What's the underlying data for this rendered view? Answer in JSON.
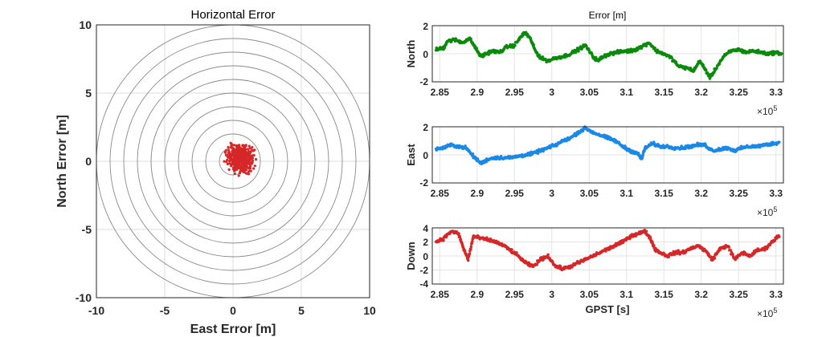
{
  "chart_data": [
    {
      "type": "scatter",
      "title": "Horizontal Error",
      "xlabel": "East Error [m]",
      "ylabel": "North Error [m]",
      "xlim": [
        -10,
        10
      ],
      "ylim": [
        -10,
        10
      ],
      "xticks": [
        "-10",
        "-5",
        "0",
        "5",
        "10"
      ],
      "yticks": [
        "10",
        "5",
        "0",
        "-5",
        "-10"
      ],
      "circle_radii_m": [
        1,
        2,
        3,
        4,
        5,
        6,
        7,
        8,
        9,
        10
      ],
      "marker_color": "#d62728",
      "cluster": {
        "center": [
          0.5,
          0.2
        ],
        "extent": [
          -0.8,
          2.0
        ],
        "n_points": 500
      }
    },
    {
      "type": "scatter",
      "title": "Error [m]",
      "ylabel": "North",
      "xlabel": "",
      "color": "#0a8a0a",
      "xlim": [
        284000,
        331000
      ],
      "ylim": [
        -2,
        2
      ],
      "yticks": [
        "2",
        "0",
        "-2"
      ],
      "xticks": [
        "2.85",
        "2.9",
        "2.95",
        "3",
        "3.05",
        "3.1",
        "3.15",
        "3.2",
        "3.25",
        "3.3"
      ],
      "x_exponent": "×10",
      "x_exponent_power": "5",
      "x": [
        284500,
        285500,
        286000,
        287000,
        288000,
        289000,
        289800,
        290500,
        291200,
        292000,
        293000,
        294000,
        295000,
        296000,
        296500,
        297200,
        297800,
        298500,
        299500,
        300500,
        301500,
        302500,
        303500,
        304500,
        305500,
        306200,
        306800,
        307800,
        308800,
        309800,
        310500,
        311200,
        312000,
        313000,
        314000,
        315000,
        316000,
        317000,
        318000,
        319000,
        319800,
        320500,
        321200,
        322000,
        323000,
        324000,
        325000,
        326000,
        327000,
        328000,
        329000,
        330000,
        330800
      ],
      "y": [
        0.3,
        0.4,
        0.9,
        1.0,
        0.8,
        1.1,
        0.4,
        -0.2,
        0.0,
        0.2,
        0.1,
        0.5,
        0.6,
        1.3,
        1.5,
        1.0,
        0.2,
        -0.3,
        -0.5,
        -0.3,
        -0.2,
        0.0,
        0.3,
        0.6,
        -0.2,
        -0.5,
        -0.2,
        0.0,
        0.1,
        0.2,
        0.2,
        0.3,
        0.5,
        0.8,
        0.2,
        0.0,
        -0.3,
        -0.9,
        -1.0,
        -1.2,
        -0.5,
        -1.1,
        -1.7,
        -1.0,
        -0.2,
        0.2,
        0.3,
        0.1,
        0.2,
        0.1,
        0.0,
        0.1,
        0.0
      ]
    },
    {
      "type": "scatter",
      "ylabel": "East",
      "xlabel": "",
      "color": "#1a88e6",
      "xlim": [
        284000,
        331000
      ],
      "ylim": [
        -2,
        2
      ],
      "yticks": [
        "2",
        "0",
        "-2"
      ],
      "xticks": [
        "2.85",
        "2.9",
        "2.95",
        "3",
        "3.05",
        "3.1",
        "3.15",
        "3.2",
        "3.25",
        "3.3"
      ],
      "x_exponent": "×10",
      "x_exponent_power": "5",
      "x": [
        284500,
        285500,
        286500,
        287500,
        288500,
        289500,
        290500,
        291500,
        292500,
        293500,
        294500,
        295500,
        296500,
        297500,
        298500,
        299500,
        300500,
        301500,
        302500,
        303500,
        304500,
        305500,
        306500,
        307500,
        308500,
        309500,
        310500,
        311500,
        312000,
        312500,
        313500,
        314500,
        315500,
        316500,
        317500,
        318500,
        319500,
        320500,
        321500,
        322500,
        323500,
        324500,
        325500,
        326500,
        327500,
        328500,
        329500,
        330500
      ],
      "y": [
        0.4,
        0.5,
        0.7,
        0.6,
        0.5,
        -0.1,
        -0.6,
        -0.3,
        -0.2,
        -0.2,
        -0.2,
        -0.1,
        0.0,
        0.1,
        0.3,
        0.5,
        0.7,
        1.0,
        1.2,
        1.6,
        1.9,
        1.6,
        1.4,
        1.2,
        1.0,
        0.6,
        0.3,
        0.1,
        -0.3,
        0.5,
        0.8,
        0.6,
        0.6,
        0.5,
        0.5,
        0.6,
        0.7,
        0.7,
        0.3,
        0.4,
        0.5,
        0.3,
        0.5,
        0.6,
        0.6,
        0.7,
        0.8,
        0.9
      ]
    },
    {
      "type": "scatter",
      "ylabel": "Down",
      "xlabel": "GPST [s]",
      "color": "#d62728",
      "xlim": [
        284000,
        331000
      ],
      "ylim": [
        -4,
        4
      ],
      "yticks": [
        "4",
        "2",
        "0",
        "-2",
        "-4"
      ],
      "xticks": [
        "2.85",
        "2.9",
        "2.95",
        "3",
        "3.05",
        "3.1",
        "3.15",
        "3.2",
        "3.25",
        "3.3"
      ],
      "x_exponent": "×10",
      "x_exponent_power": "5",
      "x": [
        284500,
        285500,
        286500,
        287500,
        288200,
        288800,
        289500,
        290500,
        291500,
        292500,
        293500,
        294500,
        295500,
        296500,
        297500,
        298500,
        299500,
        300500,
        301500,
        302500,
        303500,
        304500,
        305500,
        306500,
        307500,
        308500,
        309500,
        310500,
        311500,
        312500,
        313200,
        313800,
        314500,
        315500,
        316500,
        317500,
        318500,
        319500,
        320500,
        321500,
        322500,
        323500,
        324500,
        325500,
        326500,
        327500,
        328500,
        329500,
        330500
      ],
      "y": [
        2.0,
        2.5,
        3.5,
        3.2,
        1.0,
        -0.5,
        2.8,
        2.5,
        2.3,
        2.0,
        1.5,
        0.8,
        0.0,
        -1.0,
        -1.5,
        -0.5,
        0.0,
        -1.5,
        -1.8,
        -1.5,
        -1.0,
        -0.5,
        0.0,
        0.5,
        1.0,
        1.5,
        2.0,
        2.8,
        3.2,
        3.5,
        2.5,
        1.0,
        0.5,
        0.0,
        0.5,
        0.5,
        1.0,
        1.5,
        0.8,
        -0.5,
        1.0,
        1.5,
        -0.5,
        0.5,
        0.0,
        0.8,
        1.0,
        2.0,
        3.0
      ]
    }
  ]
}
